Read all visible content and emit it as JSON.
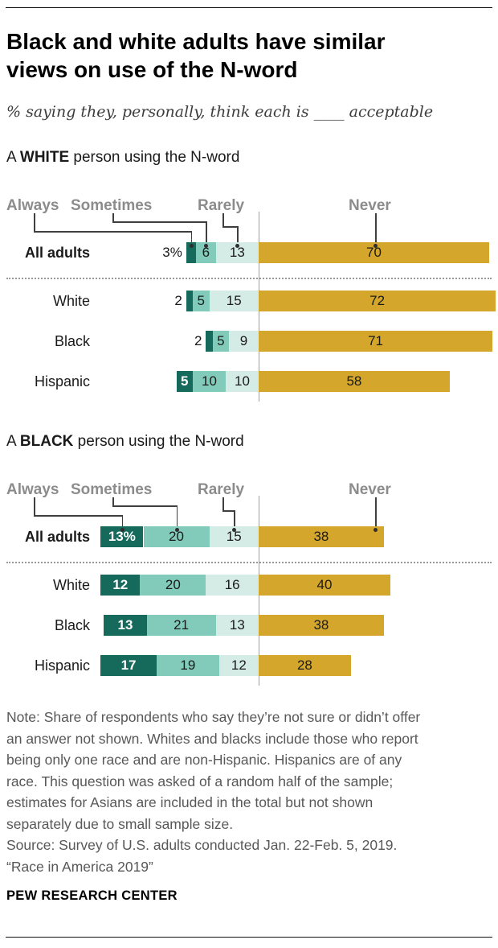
{
  "header": {
    "title_line1": "Black and white adults have similar",
    "title_line2": "views on use of the N-word",
    "subtitle": "% saying they, personally, think each is ____ acceptable"
  },
  "chart_data": [
    {
      "type": "bar",
      "orientation": "horizontal-stacked",
      "alignment": "first three categories stack leftward to shared axis; Never extends right",
      "legend_position": "top",
      "title_prefix": "A ",
      "title_bold": "WHITE",
      "title_suffix": " person using the N-word",
      "legend": [
        "Always",
        "Sometimes",
        "Rarely",
        "Never"
      ],
      "categories": [
        "All adults",
        "White",
        "Black",
        "Hispanic"
      ],
      "series": [
        {
          "name": "Always",
          "values": [
            3,
            2,
            2,
            5
          ]
        },
        {
          "name": "Sometimes",
          "values": [
            6,
            5,
            5,
            10
          ]
        },
        {
          "name": "Rarely",
          "values": [
            13,
            15,
            9,
            10
          ]
        },
        {
          "name": "Never",
          "values": [
            70,
            72,
            71,
            58
          ]
        }
      ],
      "value_labels": [
        [
          "3%",
          "6",
          "13",
          "70"
        ],
        [
          "2",
          "5",
          "15",
          "72"
        ],
        [
          "2",
          "5",
          "9",
          "71"
        ],
        [
          "5",
          "10",
          "10",
          "58"
        ]
      ]
    },
    {
      "type": "bar",
      "orientation": "horizontal-stacked",
      "alignment": "first three categories stack leftward to shared axis; Never extends right",
      "legend_position": "top",
      "title_prefix": "A ",
      "title_bold": "BLACK",
      "title_suffix": " person using the N-word",
      "legend": [
        "Always",
        "Sometimes",
        "Rarely",
        "Never"
      ],
      "categories": [
        "All adults",
        "White",
        "Black",
        "Hispanic"
      ],
      "series": [
        {
          "name": "Always",
          "values": [
            13,
            12,
            13,
            17
          ]
        },
        {
          "name": "Sometimes",
          "values": [
            20,
            20,
            21,
            19
          ]
        },
        {
          "name": "Rarely",
          "values": [
            15,
            16,
            13,
            12
          ]
        },
        {
          "name": "Never",
          "values": [
            38,
            40,
            38,
            28
          ]
        }
      ],
      "value_labels": [
        [
          "13%",
          "20",
          "15",
          "38"
        ],
        [
          "12",
          "20",
          "16",
          "40"
        ],
        [
          "13",
          "21",
          "13",
          "38"
        ],
        [
          "17",
          "19",
          "12",
          "28"
        ]
      ]
    }
  ],
  "colors": {
    "always": "#166a5c",
    "sometimes": "#82cbbb",
    "rarely": "#d5ebe5",
    "never": "#d4a72c",
    "axis_line": "#a0a0a0",
    "label_on_dark": "#ffffff",
    "label_on_light": "#1a1a1a"
  },
  "notes": {
    "note_lines": [
      "Note: Share of respondents who say they’re not sure or didn’t offer",
      "an answer not shown. Whites and blacks include those who report",
      "being only one race and are non-Hispanic. Hispanics are of any",
      "race. This question was asked of a random half of the sample;",
      "estimates for Asians are included in the total but not shown",
      "separately due to small sample size."
    ],
    "source_lines": [
      "Source: Survey of U.S. adults conducted Jan. 22-Feb. 5, 2019.",
      "“Race in America 2019”"
    ],
    "footer": "PEW RESEARCH CENTER"
  }
}
